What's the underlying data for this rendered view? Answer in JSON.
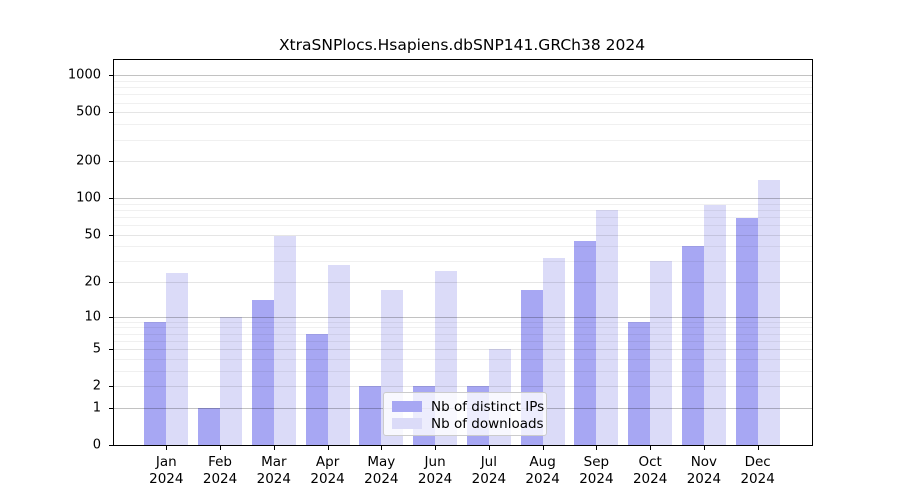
{
  "chart_data": {
    "type": "bar",
    "title": "XtraSNPlocs.Hsapiens.dbSNP141.GRCh38 2024",
    "months": [
      "Jan",
      "Feb",
      "Mar",
      "Apr",
      "May",
      "Jun",
      "Jul",
      "Aug",
      "Sep",
      "Oct",
      "Nov",
      "Dec"
    ],
    "year_label": "2024",
    "categories": [
      "Jan 2024",
      "Feb 2024",
      "Mar 2024",
      "Apr 2024",
      "May 2024",
      "Jun 2024",
      "Jul 2024",
      "Aug 2024",
      "Sep 2024",
      "Oct 2024",
      "Nov 2024",
      "Dec 2024"
    ],
    "series": [
      {
        "name": "Nb of distinct IPs",
        "color": "#a7a7f3",
        "values": [
          9,
          1,
          14,
          7,
          2,
          2,
          2,
          17,
          44,
          9,
          40,
          69
        ]
      },
      {
        "name": "Nb of downloads",
        "color": "#dbdbf8",
        "values": [
          24,
          10,
          49,
          28,
          17,
          25,
          5,
          32,
          80,
          30,
          87,
          140
        ]
      }
    ],
    "xlabel": "",
    "ylabel": "",
    "y_axis": {
      "scale": "log1p",
      "tick_values": [
        0,
        1,
        2,
        5,
        10,
        20,
        50,
        100,
        200,
        500,
        1000
      ],
      "ylim": [
        0,
        1330
      ],
      "grid": "on"
    },
    "legend": {
      "position": "inside-bottom-center"
    }
  }
}
